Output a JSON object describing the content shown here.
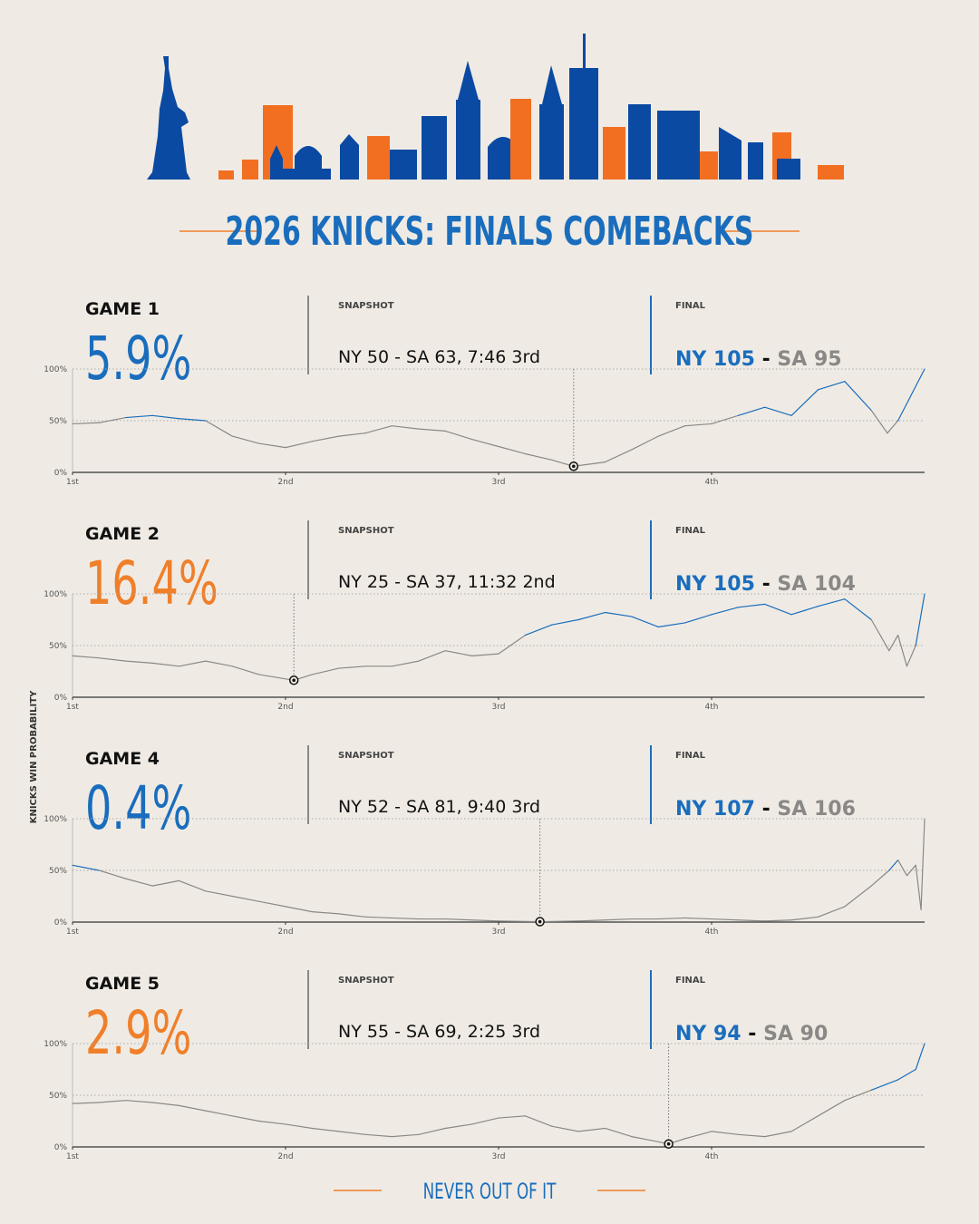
{
  "title": "2026 KNICKS: FINALS COMEBACKS",
  "y_label": "KNICKS WIN PROBABILITY",
  "footer": "NEVER OUT OF IT",
  "chart_data": [
    {
      "type": "line",
      "title": "GAME 1",
      "min_value": 5.9,
      "min_label": "5.9%",
      "min_color": "#1a6dbd",
      "snapshot_heading": "SNAPSHOT",
      "snapshot": "NY 50 - SA 63, 7:46 3rd",
      "snapshot_x": 28.23,
      "final_heading": "FINAL",
      "final_home": "NY 105",
      "final_separator": "-",
      "final_away": "SA 95",
      "color": "#8a8886",
      "highlight_color": "#1a6dbd",
      "x": [
        0,
        1.5,
        3,
        4.5,
        6,
        7.5,
        9,
        10.5,
        12,
        13.5,
        15,
        16.5,
        18,
        19.5,
        21,
        22.5,
        24,
        25.5,
        27,
        28.23,
        30,
        31.5,
        33,
        34.5,
        36,
        37.5,
        39,
        40.5,
        42,
        43.5,
        45,
        45.9,
        46.5,
        48
      ],
      "values": [
        47,
        48,
        53,
        55,
        52,
        50,
        35,
        28,
        24,
        30,
        35,
        38,
        45,
        42,
        40,
        32,
        25,
        18,
        12,
        5.9,
        10,
        22,
        35,
        45,
        47,
        55,
        63,
        55,
        80,
        88,
        60,
        38,
        50,
        100
      ],
      "xlim": [
        0,
        48
      ],
      "xticks": [
        {
          "value": 0,
          "label": "1st"
        },
        {
          "value": 12,
          "label": "2nd"
        },
        {
          "value": 24,
          "label": "3rd"
        },
        {
          "value": 36,
          "label": "4th"
        }
      ],
      "ylim": [
        0,
        100
      ],
      "yticks": [
        {
          "value": 0,
          "label": "0%"
        },
        {
          "value": 50,
          "label": "50%"
        },
        {
          "value": 100,
          "label": "100%"
        }
      ],
      "grid": true
    },
    {
      "type": "line",
      "title": "GAME 2",
      "min_value": 16.4,
      "min_label": "16.4%",
      "min_color": "#f07f2a",
      "snapshot_heading": "SNAPSHOT",
      "snapshot": "NY 25 - SA 37, 11:32 2nd",
      "snapshot_x": 12.47,
      "final_heading": "FINAL",
      "final_home": "NY 105",
      "final_separator": "-",
      "final_away": "SA 104",
      "color": "#8a8886",
      "highlight_color": "#1a6dbd",
      "x": [
        0,
        1.5,
        3,
        4.5,
        6,
        7.5,
        9,
        10.5,
        12.47,
        13.5,
        15,
        16.5,
        18,
        19.5,
        21,
        22.5,
        24,
        25.5,
        27,
        28.5,
        30,
        31.5,
        33,
        34.5,
        36,
        37.5,
        39,
        40.5,
        42,
        43.5,
        45,
        46,
        46.5,
        47,
        47.5,
        48
      ],
      "values": [
        40,
        38,
        35,
        33,
        30,
        35,
        30,
        22,
        16.4,
        22,
        28,
        30,
        30,
        35,
        45,
        40,
        42,
        60,
        70,
        75,
        82,
        78,
        68,
        72,
        80,
        87,
        90,
        80,
        88,
        95,
        75,
        45,
        60,
        30,
        50,
        100
      ],
      "xlim": [
        0,
        48
      ],
      "xticks": [
        {
          "value": 0,
          "label": "1st"
        },
        {
          "value": 12,
          "label": "2nd"
        },
        {
          "value": 24,
          "label": "3rd"
        },
        {
          "value": 36,
          "label": "4th"
        }
      ],
      "ylim": [
        0,
        100
      ],
      "yticks": [
        {
          "value": 0,
          "label": "0%"
        },
        {
          "value": 50,
          "label": "50%"
        },
        {
          "value": 100,
          "label": "100%"
        }
      ],
      "grid": true
    },
    {
      "type": "line",
      "title": "GAME 4",
      "min_value": 0.4,
      "min_label": "0.4%",
      "min_color": "#1a6dbd",
      "snapshot_heading": "SNAPSHOT",
      "snapshot": "NY 52 - SA 81, 9:40 3rd",
      "snapshot_x": 26.33,
      "final_heading": "FINAL",
      "final_home": "NY 107",
      "final_separator": "-",
      "final_away": "SA 106",
      "color": "#8a8886",
      "highlight_color": "#1a6dbd",
      "x": [
        0,
        1.5,
        3,
        4.5,
        6,
        7.5,
        9,
        10.5,
        12,
        13.5,
        15,
        16.5,
        18,
        19.5,
        21,
        22.5,
        24,
        26.33,
        28.5,
        30,
        31.5,
        33,
        34.5,
        36,
        37.5,
        39,
        40.5,
        42,
        43.5,
        45,
        46,
        46.5,
        47,
        47.5,
        47.8,
        48
      ],
      "values": [
        55,
        50,
        42,
        35,
        40,
        30,
        25,
        20,
        15,
        10,
        8,
        5,
        4,
        3,
        3,
        2,
        1,
        0.4,
        1,
        2,
        3,
        3,
        4,
        3,
        2,
        1,
        2,
        5,
        15,
        35,
        50,
        60,
        45,
        55,
        12,
        100
      ],
      "xlim": [
        0,
        48
      ],
      "xticks": [
        {
          "value": 0,
          "label": "1st"
        },
        {
          "value": 12,
          "label": "2nd"
        },
        {
          "value": 24,
          "label": "3rd"
        },
        {
          "value": 36,
          "label": "4th"
        }
      ],
      "ylim": [
        0,
        100
      ],
      "yticks": [
        {
          "value": 0,
          "label": "0%"
        },
        {
          "value": 50,
          "label": "50%"
        },
        {
          "value": 100,
          "label": "100%"
        }
      ],
      "grid": true
    },
    {
      "type": "line",
      "title": "GAME 5",
      "min_value": 2.9,
      "min_label": "2.9%",
      "min_color": "#f07f2a",
      "snapshot_heading": "SNAPSHOT",
      "snapshot": "NY 55 - SA 69, 2:25 3rd",
      "snapshot_x": 33.58,
      "final_heading": "FINAL",
      "final_home": "NY 94",
      "final_separator": "-",
      "final_away": "SA 90",
      "color": "#8a8886",
      "highlight_color": "#1a6dbd",
      "x": [
        0,
        1.5,
        3,
        4.5,
        6,
        7.5,
        9,
        10.5,
        12,
        13.5,
        15,
        16.5,
        18,
        19.5,
        21,
        22.5,
        24,
        25.5,
        27,
        28.5,
        30,
        31.5,
        33,
        33.58,
        34.5,
        36,
        37.5,
        39,
        40.5,
        42,
        43.5,
        45,
        46.5,
        47.5,
        48
      ],
      "values": [
        42,
        43,
        45,
        43,
        40,
        35,
        30,
        25,
        22,
        18,
        15,
        12,
        10,
        12,
        18,
        22,
        28,
        30,
        20,
        15,
        18,
        10,
        5,
        2.9,
        8,
        15,
        12,
        10,
        15,
        30,
        45,
        55,
        65,
        75,
        100
      ],
      "xlim": [
        0,
        48
      ],
      "xticks": [
        {
          "value": 0,
          "label": "1st"
        },
        {
          "value": 12,
          "label": "2nd"
        },
        {
          "value": 24,
          "label": "3rd"
        },
        {
          "value": 36,
          "label": "4th"
        }
      ],
      "ylim": [
        0,
        100
      ],
      "yticks": [
        {
          "value": 0,
          "label": "0%"
        },
        {
          "value": 50,
          "label": "50%"
        },
        {
          "value": 100,
          "label": "100%"
        }
      ],
      "grid": true
    }
  ]
}
